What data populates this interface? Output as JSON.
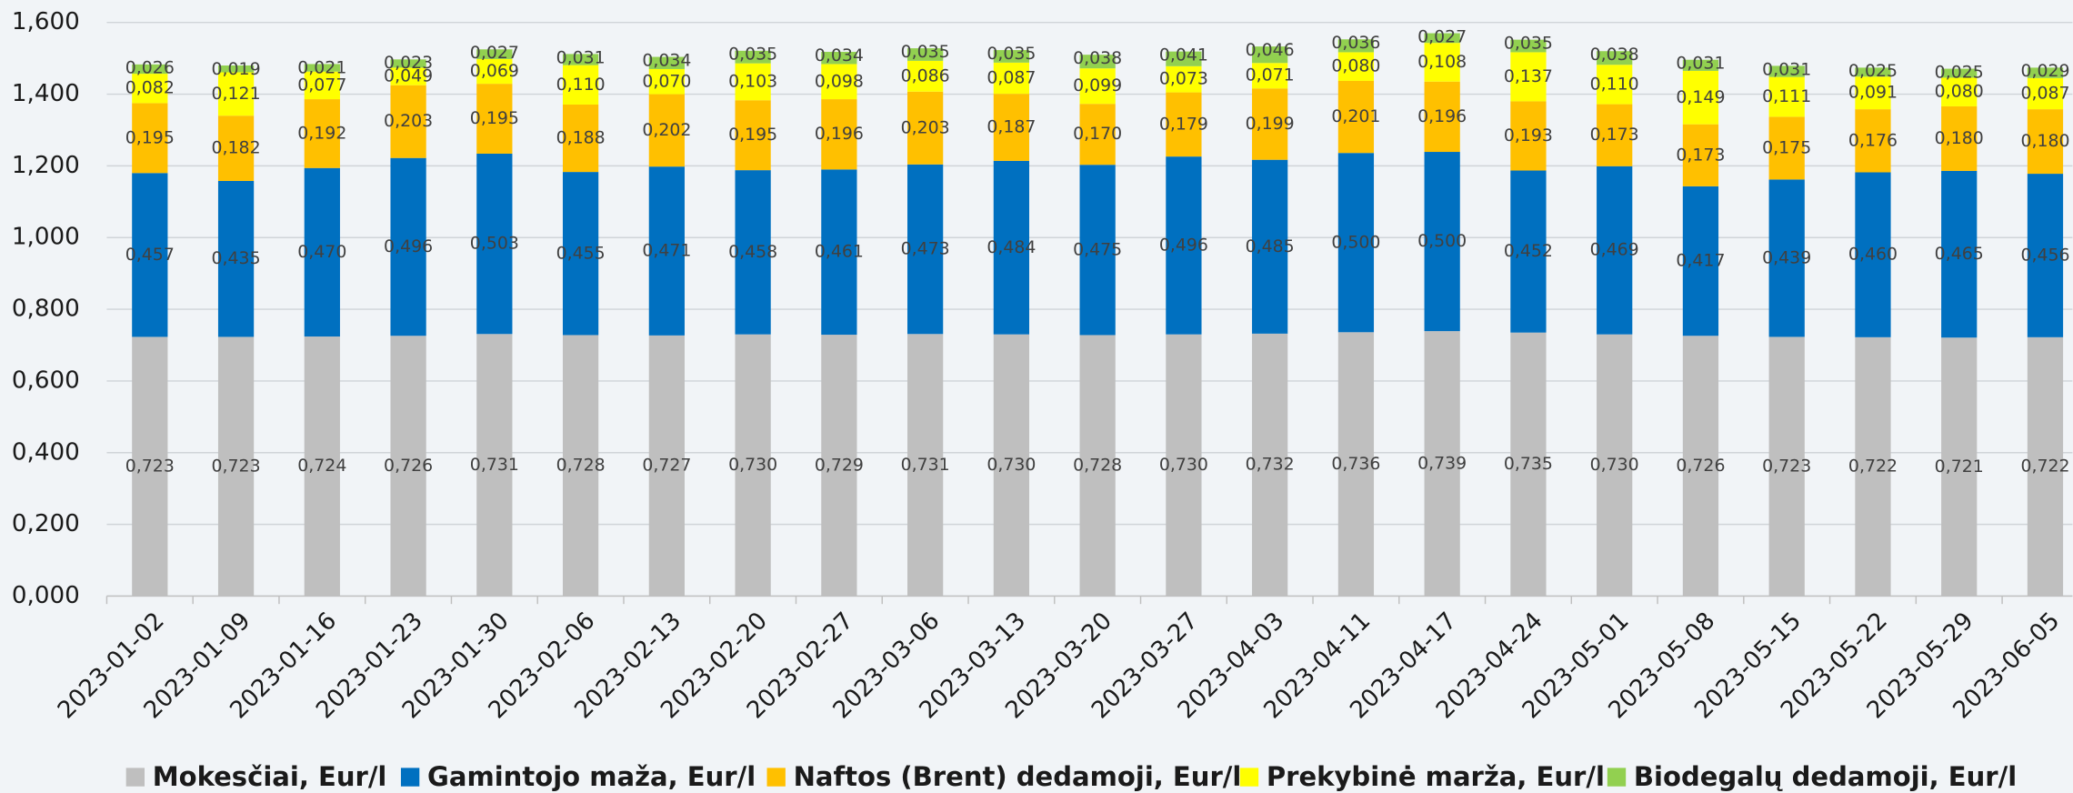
{
  "chart_data": {
    "type": "stacked-bar",
    "categories": [
      "2023-01-02",
      "2023-01-09",
      "2023-01-16",
      "2023-01-23",
      "2023-01-30",
      "2023-02-06",
      "2023-02-13",
      "2023-02-20",
      "2023-02-27",
      "2023-03-06",
      "2023-03-13",
      "2023-03-20",
      "2023-03-27",
      "2023-04-03",
      "2023-04-11",
      "2023-04-17",
      "2023-04-24",
      "2023-05-01",
      "2023-05-08",
      "2023-05-15",
      "2023-05-22",
      "2023-05-29",
      "2023-06-05"
    ],
    "series": [
      {
        "name": "Mokesčiai, Eur/l",
        "color": "#bfbfbf",
        "values": [
          0.723,
          0.723,
          0.724,
          0.726,
          0.731,
          0.728,
          0.727,
          0.73,
          0.729,
          0.731,
          0.73,
          0.728,
          0.73,
          0.732,
          0.736,
          0.739,
          0.735,
          0.73,
          0.726,
          0.723,
          0.722,
          0.721,
          0.722
        ],
        "value_labels": [
          "0,723",
          "0,723",
          "0,724",
          "0,726",
          "0,731",
          "0,728",
          "0,727",
          "0,730",
          "0,729",
          "0,731",
          "0,730",
          "0,728",
          "0,730",
          "0,732",
          "0,736",
          "0,739",
          "0,735",
          "0,730",
          "0,726",
          "0,723",
          "0,722",
          "0,721",
          "0,722"
        ]
      },
      {
        "name": "Gamintojo maža, Eur/l",
        "color": "#0070c0",
        "values": [
          0.457,
          0.435,
          0.47,
          0.496,
          0.503,
          0.455,
          0.471,
          0.458,
          0.461,
          0.473,
          0.484,
          0.475,
          0.496,
          0.485,
          0.5,
          0.5,
          0.452,
          0.469,
          0.417,
          0.439,
          0.46,
          0.465,
          0.456
        ],
        "value_labels": [
          "0,457",
          "0,435",
          "0,470",
          "0,496",
          "0,503",
          "0,455",
          "0,471",
          "0,458",
          "0,461",
          "0,473",
          "0,484",
          "0,475",
          "0,496",
          "0,485",
          "0,500",
          "0,500",
          "0,452",
          "0,469",
          "0,417",
          "0,439",
          "0,460",
          "0,465",
          "0,456"
        ]
      },
      {
        "name": "Naftos (Brent) dedamoji, Eur/l",
        "color": "#ffc000",
        "values": [
          0.195,
          0.182,
          0.192,
          0.203,
          0.195,
          0.188,
          0.202,
          0.195,
          0.196,
          0.203,
          0.187,
          0.17,
          0.179,
          0.199,
          0.201,
          0.196,
          0.193,
          0.173,
          0.173,
          0.175,
          0.176,
          0.18,
          0.18
        ],
        "value_labels": [
          "0,195",
          "0,182",
          "0,192",
          "0,203",
          "0,195",
          "0,188",
          "0,202",
          "0,195",
          "0,196",
          "0,203",
          "0,187",
          "0,170",
          "0,179",
          "0,199",
          "0,201",
          "0,196",
          "0,193",
          "0,173",
          "0,173",
          "0,175",
          "0,176",
          "0,180",
          "0,180"
        ]
      },
      {
        "name": "Prekybinė marža, Eur/l",
        "color": "#ffff00",
        "values": [
          0.082,
          0.121,
          0.077,
          0.049,
          0.069,
          0.11,
          0.07,
          0.103,
          0.098,
          0.086,
          0.087,
          0.099,
          0.073,
          0.071,
          0.08,
          0.108,
          0.137,
          0.11,
          0.149,
          0.111,
          0.091,
          0.08,
          0.087
        ],
        "value_labels": [
          "0,082",
          "0,121",
          "0,077",
          "0,049",
          "0,069",
          "0,110",
          "0,070",
          "0,103",
          "0,098",
          "0,086",
          "0,087",
          "0,099",
          "0,073",
          "0,071",
          "0,080",
          "0,108",
          "0,137",
          "0,110",
          "0,149",
          "0,111",
          "0,091",
          "0,080",
          "0,087"
        ]
      },
      {
        "name": "Biodegalų dedamoji, Eur/l",
        "color": "#92d050",
        "values": [
          0.026,
          0.019,
          0.021,
          0.023,
          0.027,
          0.031,
          0.034,
          0.035,
          0.034,
          0.035,
          0.035,
          0.038,
          0.041,
          0.046,
          0.036,
          0.027,
          0.035,
          0.038,
          0.031,
          0.031,
          0.025,
          0.025,
          0.029
        ],
        "value_labels": [
          "0,026",
          "0,019",
          "0,021",
          "0,023",
          "0,027",
          "0,031",
          "0,034",
          "0,035",
          "0,034",
          "0,035",
          "0,035",
          "0,038",
          "0,041",
          "0,046",
          "0,036",
          "0,027",
          "0,035",
          "0,038",
          "0,031",
          "0,031",
          "0,025",
          "0,025",
          "0,029"
        ]
      }
    ],
    "ylim": [
      0,
      1.6
    ],
    "yticks": [
      {
        "value": 0,
        "label": "0,000"
      },
      {
        "value": 0.2,
        "label": "0,200"
      },
      {
        "value": 0.4,
        "label": "0,400"
      },
      {
        "value": 0.6,
        "label": "0,600"
      },
      {
        "value": 0.8,
        "label": "0,800"
      },
      {
        "value": 1.0,
        "label": "1,000"
      },
      {
        "value": 1.2,
        "label": "1,200"
      },
      {
        "value": 1.4,
        "label": "1,400"
      },
      {
        "value": 1.6,
        "label": "1,600"
      }
    ],
    "grid": true,
    "legend": "bottom"
  }
}
